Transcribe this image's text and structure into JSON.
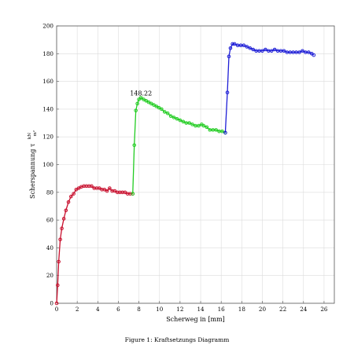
{
  "caption": "Figure 1: Kraftsetzungs Diagramm",
  "chart_data": {
    "type": "line",
    "title": "",
    "xlabel": "Scherweg in [mm]",
    "ylabel": "Scherspannung τ",
    "ylabel_unit_num": "kN",
    "ylabel_unit_den": "m²",
    "xlim": [
      0,
      27
    ],
    "ylim": [
      0,
      200
    ],
    "x_ticks": [
      0,
      2,
      4,
      6,
      8,
      10,
      12,
      14,
      16,
      18,
      20,
      22,
      24,
      26
    ],
    "y_ticks": [
      0,
      20,
      40,
      60,
      80,
      100,
      120,
      140,
      160,
      180,
      200
    ],
    "grid": true,
    "annotations": [
      {
        "x": 8.2,
        "y": 148.22,
        "text": "148.22"
      }
    ],
    "series": [
      {
        "color": "#c8102e",
        "x": [
          0,
          0.1,
          0.2,
          0.35,
          0.5,
          0.7,
          0.9,
          1.15,
          1.4,
          1.65,
          1.9,
          2.15,
          2.4,
          2.65,
          2.9,
          3.15,
          3.4,
          3.65,
          3.9,
          4.15,
          4.4,
          4.65,
          4.9,
          5.15,
          5.4,
          5.65,
          5.9,
          6.15,
          6.4,
          6.65,
          6.9,
          7.15,
          7.4
        ],
        "y": [
          0,
          13,
          30,
          46,
          54,
          61,
          67,
          73,
          77,
          79,
          82,
          83,
          84,
          84.5,
          84.5,
          84.5,
          84.5,
          83,
          83,
          83,
          82,
          82,
          81,
          83,
          81,
          81,
          80,
          80,
          80,
          80,
          79,
          79,
          79
        ]
      },
      {
        "color": "#22cc22",
        "x": [
          7.4,
          7.55,
          7.7,
          7.85,
          8.0,
          8.2,
          8.45,
          8.7,
          8.95,
          9.2,
          9.45,
          9.7,
          9.95,
          10.2,
          10.5,
          10.8,
          11.1,
          11.4,
          11.7,
          12.0,
          12.3,
          12.6,
          12.9,
          13.2,
          13.5,
          13.8,
          14.1,
          14.3,
          14.6,
          14.9,
          15.2,
          15.5,
          15.8,
          16.1,
          16.4
        ],
        "y": [
          79,
          114,
          139,
          144,
          147,
          148.22,
          147,
          146,
          145,
          144,
          143,
          142,
          141,
          140,
          138,
          137,
          135,
          134,
          133,
          132,
          131,
          130,
          130,
          129,
          128,
          128,
          129,
          128,
          127,
          125,
          125,
          125,
          124,
          124,
          123
        ]
      },
      {
        "color": "#1f1fd6",
        "x": [
          16.4,
          16.6,
          16.75,
          16.9,
          17.1,
          17.3,
          17.6,
          17.9,
          18.2,
          18.5,
          18.8,
          19.1,
          19.4,
          19.7,
          20.0,
          20.3,
          20.6,
          20.9,
          21.2,
          21.5,
          21.8,
          22.1,
          22.4,
          22.7,
          23.0,
          23.3,
          23.6,
          23.9,
          24.2,
          24.5,
          24.8,
          25.0
        ],
        "y": [
          123,
          152,
          178,
          184,
          187,
          187,
          186,
          186,
          186,
          185,
          184,
          183,
          182,
          182,
          182,
          183,
          182,
          182,
          183,
          182,
          182,
          182,
          181,
          181,
          181,
          181,
          181,
          182,
          181,
          181,
          180,
          179
        ]
      }
    ]
  }
}
